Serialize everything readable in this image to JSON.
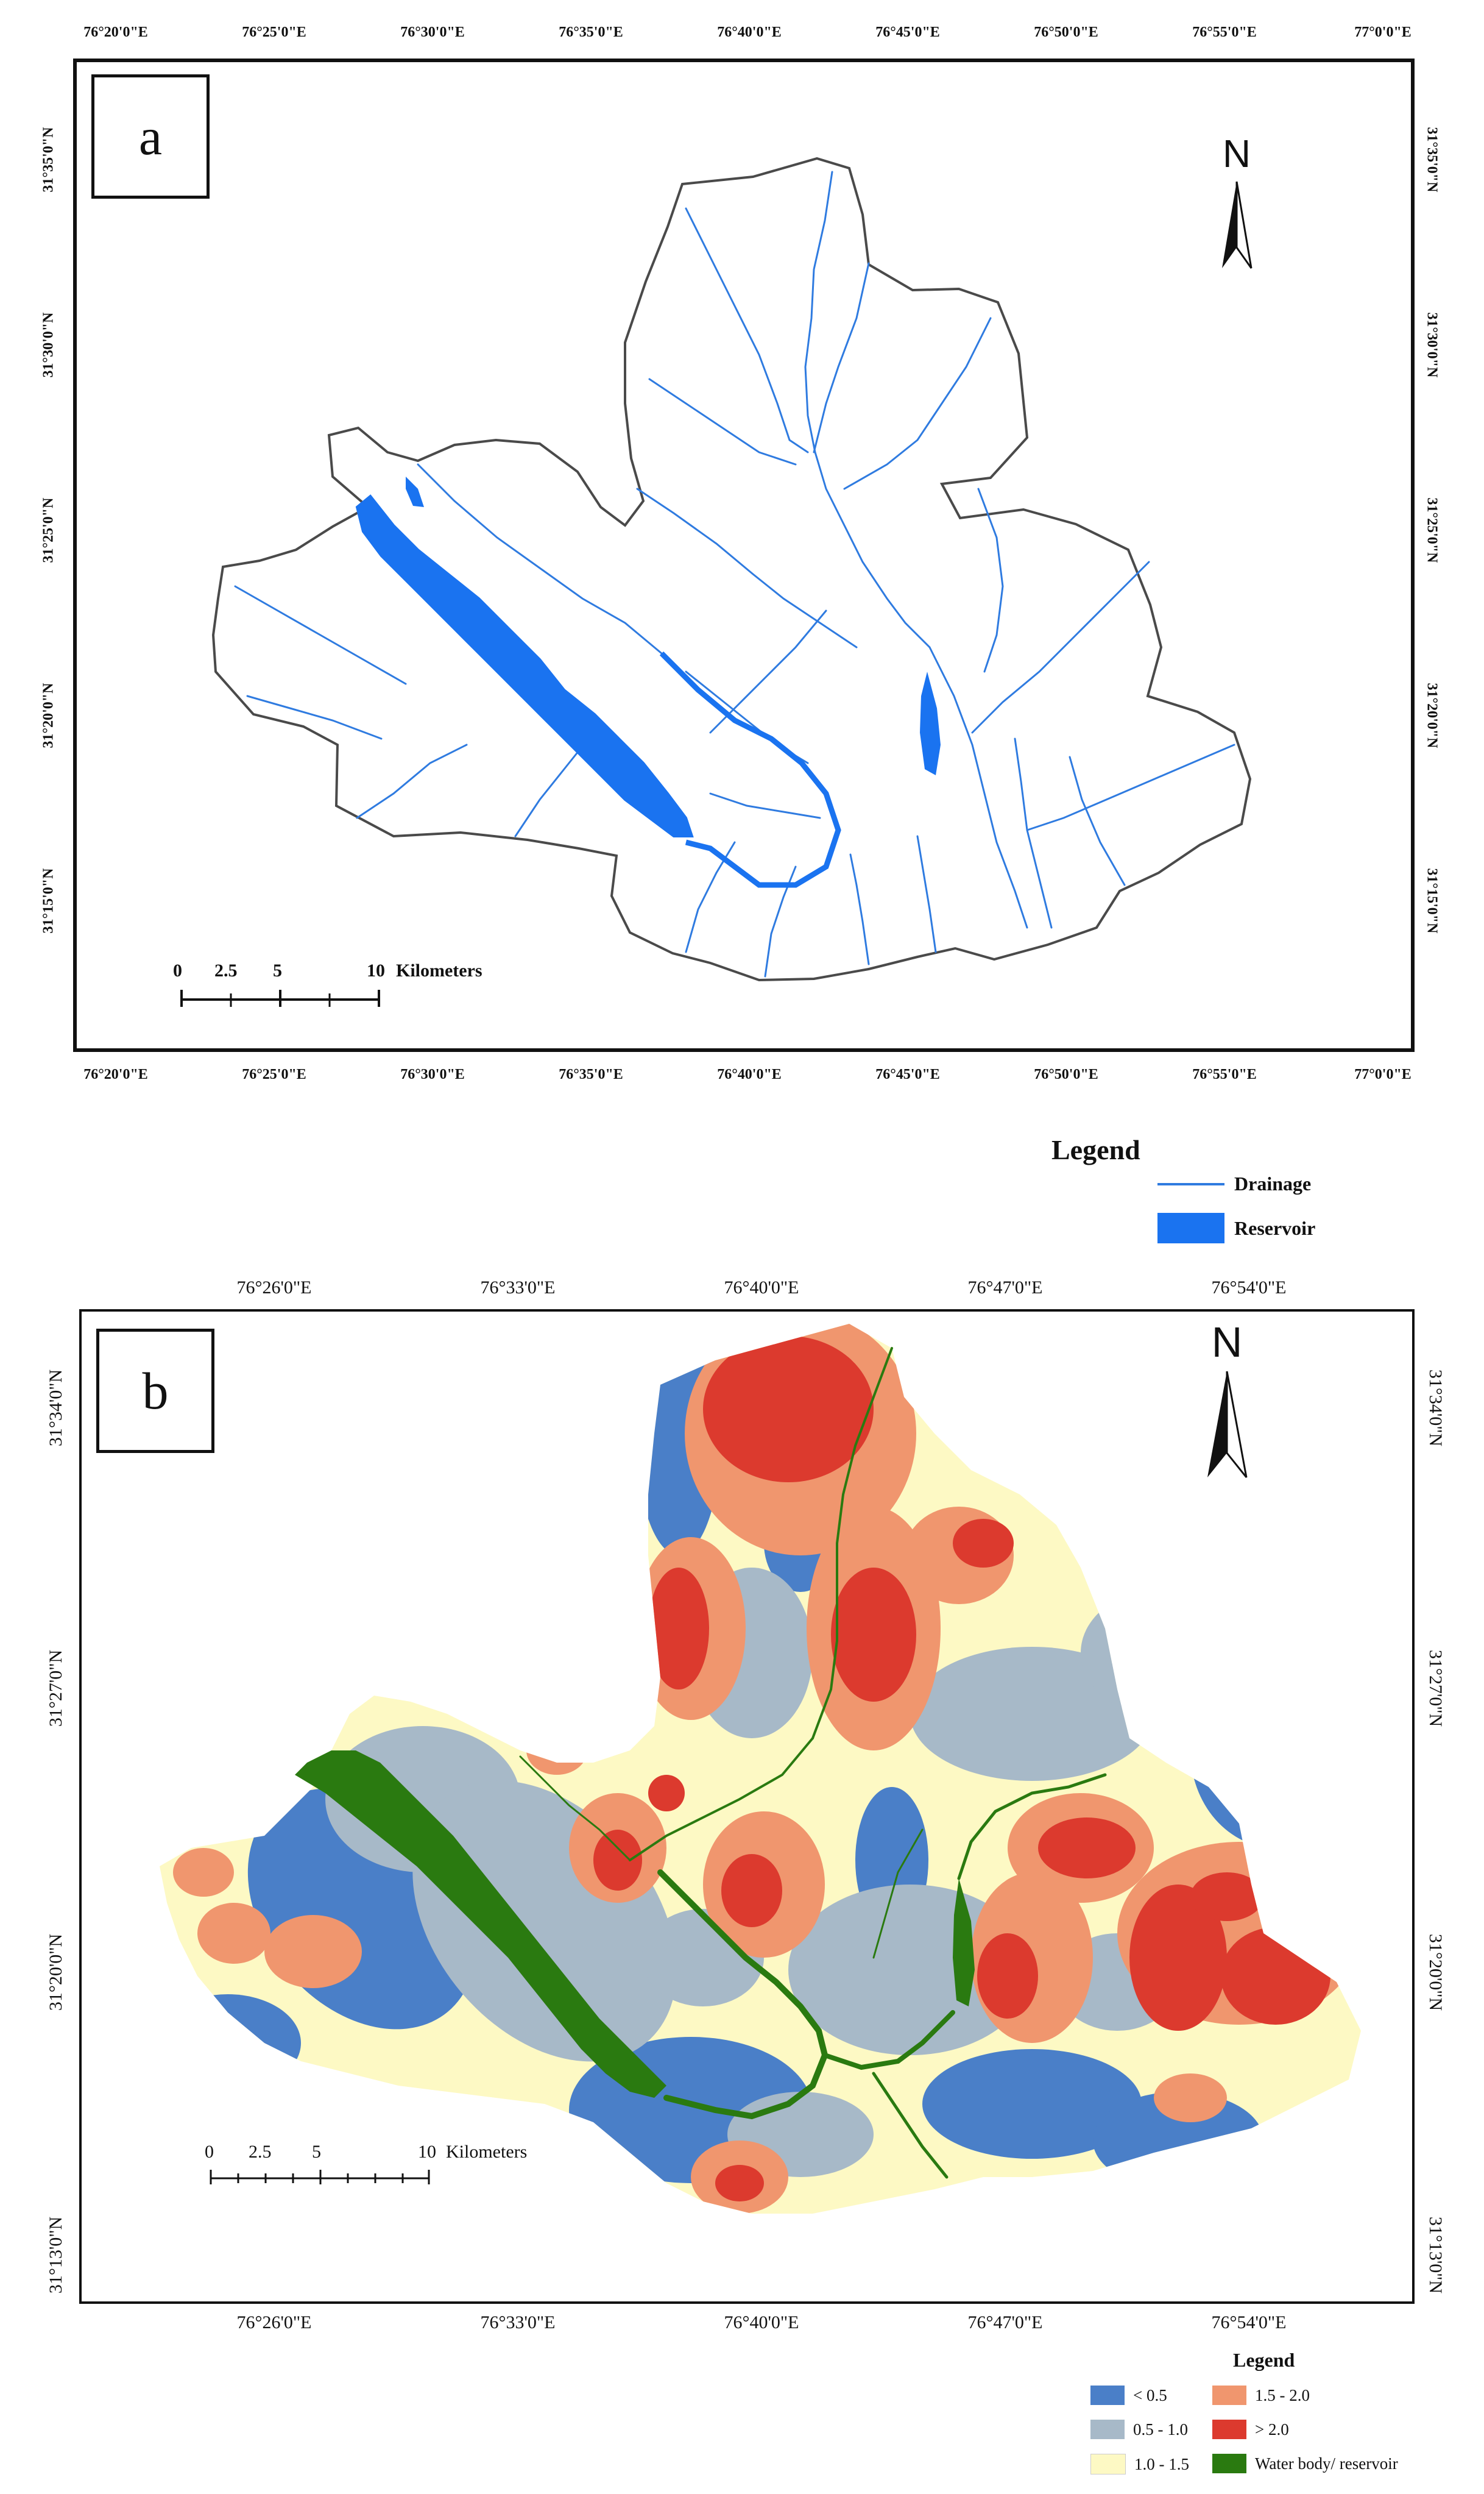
{
  "panel_a": {
    "label": "a",
    "x_ticks": [
      "76°20'0\"E",
      "76°25'0\"E",
      "76°30'0\"E",
      "76°35'0\"E",
      "76°40'0\"E",
      "76°45'0\"E",
      "76°50'0\"E",
      "76°55'0\"E",
      "77°0'0\"E"
    ],
    "y_ticks": [
      "31°35'0\"N",
      "31°30'0\"N",
      "31°25'0\"N",
      "31°20'0\"N",
      "31°15'0\"N"
    ],
    "north": "N",
    "scale": {
      "labels": [
        "0",
        "2.5",
        "5",
        "10"
      ],
      "unit": "Kilometers"
    },
    "colors": {
      "drainage": "#2f7be0",
      "reservoir": "#1a73f0",
      "boundary": "#4a4a4a"
    }
  },
  "legend_a": {
    "title": "Legend",
    "items": [
      {
        "label": "Drainage",
        "color": "#2f7be0",
        "kind": "line"
      },
      {
        "label": "Reservoir",
        "color": "#1a73f0",
        "kind": "fill"
      }
    ]
  },
  "panel_b": {
    "label": "b",
    "x_ticks": [
      "76°26'0\"E",
      "76°33'0\"E",
      "76°40'0\"E",
      "76°47'0\"E",
      "76°54'0\"E"
    ],
    "y_ticks": [
      "31°34'0\"N",
      "31°27'0\"N",
      "31°20'0\"N",
      "31°13'0\"N"
    ],
    "north": "N",
    "scale": {
      "labels": [
        "0",
        "2.5",
        "5",
        "10"
      ],
      "unit": "Kilometers"
    }
  },
  "legend_b": {
    "title": "Legend",
    "items": [
      {
        "label": "< 0.5",
        "color": "#4a7fc8"
      },
      {
        "label": "1.5 - 2.0",
        "color": "#f0966e"
      },
      {
        "label": "0.5 - 1.0",
        "color": "#a7b9c8"
      },
      {
        "label": "> 2.0",
        "color": "#dc3a2e"
      },
      {
        "label": "1.0 - 1.5",
        "color": "#fdf9c4"
      },
      {
        "label": "Water body/ reservoir",
        "color": "#2a7a10"
      }
    ]
  }
}
